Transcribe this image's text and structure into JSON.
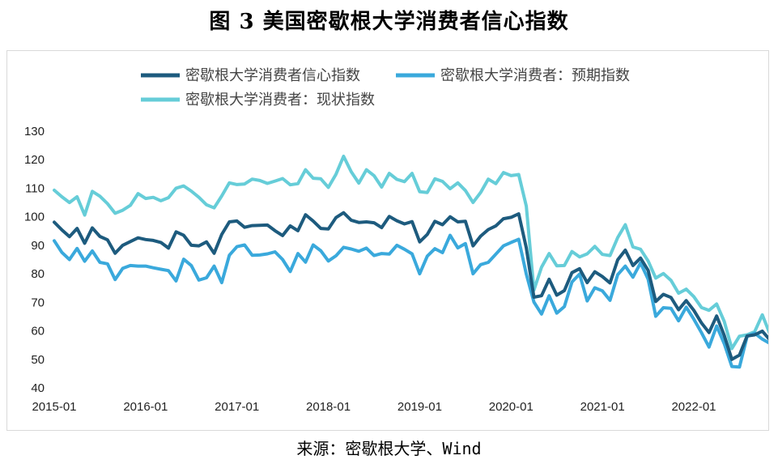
{
  "title": "图 3 美国密歇根大学消费者信心指数",
  "source": "来源：密歇根大学、Wind",
  "chart_data": {
    "type": "line",
    "title": "图 3 美国密歇根大学消费者信心指数",
    "xlabel": "",
    "ylabel": "",
    "ylim": [
      40,
      130
    ],
    "yticks": [
      "130",
      "120",
      "110",
      "100",
      "90",
      "80",
      "70",
      "60",
      "50",
      "40"
    ],
    "xticks": [
      "2015-01",
      "2016-01",
      "2017-01",
      "2018-01",
      "2019-01",
      "2020-01",
      "2021-01",
      "2022-01"
    ],
    "x_start": "2015-01",
    "x_step": "monthly",
    "series": [
      {
        "name": "密歇根大学消费者信心指数",
        "color": "#1d5b7e",
        "values": [
          98.1,
          95.4,
          93.0,
          95.9,
          90.7,
          96.1,
          93.1,
          91.9,
          87.2,
          90.0,
          91.3,
          92.6,
          92.0,
          91.7,
          91.0,
          89.0,
          94.7,
          93.5,
          90.0,
          89.8,
          91.2,
          87.2,
          93.8,
          98.2,
          98.5,
          96.3,
          96.9,
          97.0,
          97.1,
          95.1,
          93.4,
          96.8,
          95.1,
          100.7,
          98.5,
          95.9,
          95.7,
          99.7,
          101.4,
          98.8,
          98.0,
          98.2,
          97.9,
          96.2,
          100.1,
          98.6,
          97.5,
          98.3,
          91.2,
          93.8,
          98.4,
          97.2,
          100.0,
          98.2,
          98.4,
          89.8,
          93.2,
          95.5,
          96.8,
          99.3,
          99.8,
          101.0,
          89.1,
          71.8,
          72.3,
          78.1,
          72.5,
          74.1,
          80.4,
          81.8,
          76.9,
          80.7,
          79.0,
          76.8,
          84.9,
          88.3,
          82.9,
          85.5,
          81.2,
          70.3,
          72.8,
          71.7,
          67.4,
          70.6,
          67.2,
          62.8,
          59.4,
          65.2,
          58.4,
          50.0,
          51.5,
          58.2,
          58.6,
          59.9,
          56.8,
          59.7
        ]
      },
      {
        "name": "密歇根大学消费者：预期指数",
        "color": "#3aa9dc",
        "values": [
          91.6,
          87.5,
          85.0,
          88.9,
          84.4,
          88.0,
          84.0,
          83.5,
          78.0,
          81.9,
          82.9,
          82.7,
          82.7,
          82.1,
          81.6,
          81.1,
          77.5,
          85.1,
          82.9,
          77.8,
          78.6,
          82.7,
          76.9,
          86.5,
          89.5,
          90.1,
          86.5,
          86.6,
          87.0,
          87.7,
          85.0,
          80.8,
          87.1,
          84.1,
          90.1,
          88.1,
          84.5,
          86.3,
          89.3,
          88.7,
          87.9,
          89.0,
          86.4,
          87.1,
          86.9,
          90.0,
          88.6,
          87.0,
          80.0,
          86.2,
          88.8,
          87.4,
          93.5,
          89.1,
          90.6,
          80.0,
          83.2,
          84.0,
          86.9,
          89.8,
          91.0,
          92.1,
          79.9,
          70.1,
          65.9,
          72.3,
          66.2,
          68.5,
          77.1,
          79.9,
          70.5,
          75.1,
          74.0,
          70.7,
          79.7,
          82.7,
          78.8,
          83.8,
          78.1,
          65.1,
          68.1,
          67.9,
          63.5,
          68.3,
          64.1,
          59.4,
          54.3,
          61.7,
          55.5,
          47.5,
          47.3,
          58.0,
          59.2,
          57.1,
          55.6,
          58.4
        ]
      },
      {
        "name": "密歇根大学消费者：现状指数",
        "color": "#66cdd8",
        "values": [
          109.3,
          107.0,
          105.0,
          107.0,
          100.6,
          108.9,
          107.2,
          104.6,
          101.2,
          102.3,
          104.0,
          108.1,
          106.4,
          106.8,
          105.6,
          106.7,
          110.0,
          110.8,
          109.0,
          106.8,
          104.2,
          103.1,
          107.3,
          111.9,
          111.3,
          111.5,
          113.2,
          112.7,
          111.7,
          112.5,
          113.4,
          111.2,
          111.6,
          116.5,
          113.5,
          113.3,
          110.3,
          114.9,
          121.2,
          115.8,
          111.8,
          116.5,
          114.4,
          110.4,
          115.2,
          113.1,
          112.3,
          115.2,
          108.8,
          108.5,
          113.3,
          112.4,
          109.8,
          111.9,
          109.2,
          105.0,
          108.5,
          113.2,
          111.6,
          115.5,
          114.4,
          114.8,
          103.7,
          74.3,
          82.3,
          87.1,
          82.8,
          82.9,
          87.8,
          85.9,
          87.0,
          89.6,
          86.8,
          86.4,
          92.7,
          97.2,
          89.4,
          88.6,
          84.5,
          78.5,
          80.1,
          77.7,
          73.2,
          74.6,
          72.0,
          68.2,
          67.2,
          69.4,
          63.3,
          53.8,
          58.1,
          58.6,
          59.7,
          65.6,
          58.9,
          60.4
        ]
      }
    ]
  }
}
